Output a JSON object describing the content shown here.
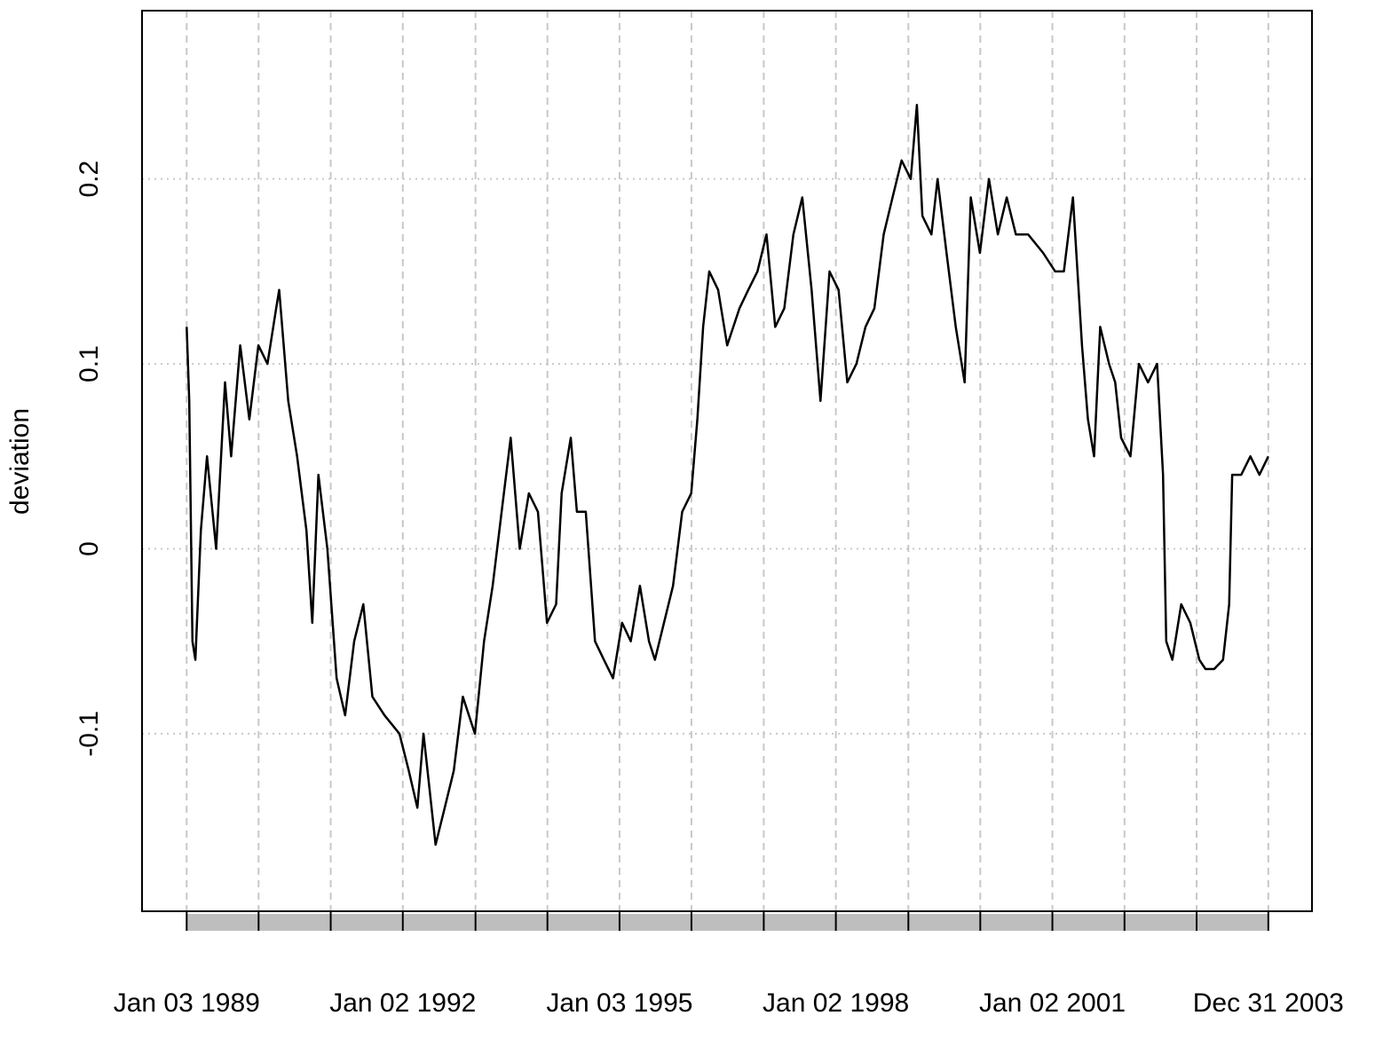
{
  "chart_data": {
    "type": "line",
    "y_label": "deviation",
    "x": [
      "1989-01-03",
      "1989-01-16",
      "1989-02-01",
      "1989-02-16",
      "1989-03-16",
      "1989-04-16",
      "1989-06-01",
      "1989-07-16",
      "1989-08-16",
      "1989-10-01",
      "1989-11-16",
      "1990-01-01",
      "1990-02-16",
      "1990-04-01",
      "1990-04-16",
      "1990-06-01",
      "1990-07-16",
      "1990-09-01",
      "1990-10-01",
      "1990-11-01",
      "1990-12-16",
      "1991-02-01",
      "1991-03-16",
      "1991-05-01",
      "1991-06-16",
      "1991-08-01",
      "1991-10-01",
      "1991-12-16",
      "1992-02-01",
      "1992-03-16",
      "1992-04-16",
      "1992-06-16",
      "1992-08-01",
      "1992-09-16",
      "1992-11-01",
      "1993-01-01",
      "1993-02-16",
      "1993-04-01",
      "1993-05-16",
      "1993-07-01",
      "1993-08-16",
      "1993-10-01",
      "1993-11-16",
      "1994-01-01",
      "1994-02-16",
      "1994-03-16",
      "1994-05-01",
      "1994-06-01",
      "1994-07-16",
      "1994-09-01",
      "1994-10-16",
      "1994-12-01",
      "1995-01-16",
      "1995-03-01",
      "1995-04-16",
      "1995-06-01",
      "1995-07-01",
      "1995-08-16",
      "1995-10-01",
      "1995-11-16",
      "1996-01-01",
      "1996-02-01",
      "1996-03-01",
      "1996-04-01",
      "1996-05-16",
      "1996-07-01",
      "1996-09-01",
      "1996-10-16",
      "1996-12-01",
      "1997-01-16",
      "1997-03-01",
      "1997-04-16",
      "1997-06-01",
      "1997-07-16",
      "1997-09-01",
      "1997-10-16",
      "1997-12-01",
      "1998-01-16",
      "1998-03-01",
      "1998-04-16",
      "1998-06-01",
      "1998-07-16",
      "1998-09-01",
      "1998-10-16",
      "1998-12-01",
      "1999-01-16",
      "1999-02-16",
      "1999-03-16",
      "1999-05-01",
      "1999-06-01",
      "1999-07-16",
      "1999-09-01",
      "1999-10-16",
      "1999-11-16",
      "2000-01-01",
      "2000-02-16",
      "2000-04-01",
      "2000-05-16",
      "2000-07-01",
      "2000-09-01",
      "2000-11-16",
      "2001-01-16",
      "2001-03-01",
      "2001-04-16",
      "2001-06-01",
      "2001-07-01",
      "2001-08-01",
      "2001-09-01",
      "2001-10-16",
      "2001-11-16",
      "2001-12-16",
      "2002-02-01",
      "2002-03-16",
      "2002-05-01",
      "2002-06-16",
      "2002-07-16",
      "2002-08-01",
      "2002-09-01",
      "2002-10-16",
      "2002-12-01",
      "2003-01-16",
      "2003-02-16",
      "2003-04-01",
      "2003-05-16",
      "2003-06-16",
      "2003-07-01",
      "2003-08-16",
      "2003-10-01",
      "2003-11-16",
      "2003-12-31"
    ],
    "series": [
      {
        "color": "#000000",
        "values": [
          0.12,
          0.08,
          -0.05,
          -0.06,
          0.01,
          0.05,
          0.0,
          0.09,
          0.05,
          0.11,
          0.07,
          0.11,
          0.1,
          0.13,
          0.14,
          0.08,
          0.05,
          0.01,
          -0.04,
          0.04,
          0.0,
          -0.07,
          -0.09,
          -0.05,
          -0.03,
          -0.08,
          -0.09,
          -0.1,
          -0.12,
          -0.14,
          -0.1,
          -0.16,
          -0.14,
          -0.12,
          -0.08,
          -0.1,
          -0.05,
          -0.02,
          0.02,
          0.06,
          0.0,
          0.03,
          0.02,
          -0.04,
          -0.03,
          0.03,
          0.06,
          0.02,
          0.02,
          -0.05,
          -0.06,
          -0.07,
          -0.04,
          -0.05,
          -0.02,
          -0.05,
          -0.06,
          -0.04,
          -0.02,
          0.02,
          0.03,
          0.07,
          0.12,
          0.15,
          0.14,
          0.11,
          0.13,
          0.14,
          0.15,
          0.17,
          0.12,
          0.13,
          0.17,
          0.19,
          0.14,
          0.08,
          0.15,
          0.14,
          0.09,
          0.1,
          0.12,
          0.13,
          0.17,
          0.19,
          0.21,
          0.2,
          0.24,
          0.18,
          0.17,
          0.2,
          0.16,
          0.12,
          0.09,
          0.19,
          0.16,
          0.2,
          0.17,
          0.19,
          0.17,
          0.17,
          0.16,
          0.15,
          0.15,
          0.19,
          0.11,
          0.07,
          0.05,
          0.12,
          0.1,
          0.09,
          0.06,
          0.05,
          0.1,
          0.09,
          0.1,
          0.04,
          -0.05,
          -0.06,
          -0.03,
          -0.04,
          -0.06,
          -0.065,
          -0.065,
          -0.06,
          -0.03,
          0.04,
          0.04,
          0.05,
          0.04,
          0.05
        ]
      }
    ],
    "xlim": [
      "1988-05-22",
      "2004-08-08"
    ],
    "xticks": [
      {
        "value": "1989-01-03",
        "label": "Jan 03 1989"
      },
      {
        "value": "1992-01-02",
        "label": "Jan 02 1992"
      },
      {
        "value": "1995-01-03",
        "label": "Jan 03 1995"
      },
      {
        "value": "1998-01-02",
        "label": "Jan 02 1998"
      },
      {
        "value": "2001-01-02",
        "label": "Jan 02 2001"
      },
      {
        "value": "2003-12-31",
        "label": "Dec 31 2003"
      }
    ],
    "xgrid": [
      "1989-01-03",
      "1990-01-02",
      "1991-01-02",
      "1992-01-02",
      "1993-01-04",
      "1994-01-03",
      "1995-01-03",
      "1996-01-02",
      "1997-01-02",
      "1998-01-02",
      "1999-01-04",
      "2000-01-03",
      "2001-01-02",
      "2002-01-02",
      "2003-01-02",
      "2003-12-31"
    ],
    "ylim": [
      -0.196,
      0.291
    ],
    "yticks": [
      -0.1,
      0.0,
      0.1,
      0.2
    ],
    "grid": true
  }
}
